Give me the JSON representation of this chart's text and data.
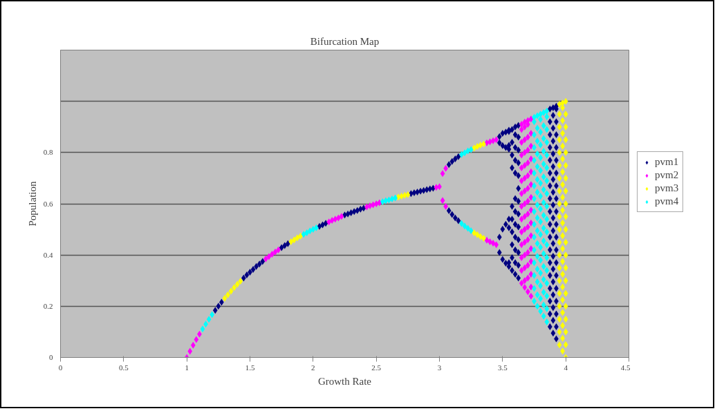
{
  "chart_data": {
    "type": "scatter",
    "title": "Bifurcation Map",
    "xlabel": "Growth Rate",
    "ylabel": "Population",
    "xlim": [
      0,
      4.5
    ],
    "xticks": [
      0,
      0.5,
      1,
      1.5,
      2,
      2.5,
      3,
      3.5,
      4,
      4.5
    ],
    "ylim": [
      0,
      1.2
    ],
    "yticks": [
      0,
      0.2,
      0.4,
      0.6,
      0.8,
      {
        "value": 1,
        "label": null
      },
      {
        "value": 1.2,
        "label": null
      }
    ],
    "grid": "y",
    "legend": "right",
    "marker": "diamond",
    "series": [
      {
        "name": "pvm1",
        "color": "#000080",
        "x": [
          1.225,
          1.25,
          1.275,
          1.45,
          1.475,
          1.5,
          1.525,
          1.55,
          1.575,
          1.6,
          1.75,
          1.775,
          1.8,
          2.05,
          2.075,
          2.1,
          2.25,
          2.275,
          2.3,
          2.325,
          2.35,
          2.375,
          2.4,
          2.775,
          2.8,
          2.825,
          2.85,
          2.875,
          2.9,
          2.925,
          2.95,
          3.075,
          3.075,
          3.1,
          3.1,
          3.125,
          3.125,
          3.15,
          3.15,
          3.475,
          3.475,
          3.475,
          3.475,
          3.5,
          3.5,
          3.5,
          3.5,
          3.525,
          3.525,
          3.525,
          3.525,
          3.55,
          3.55,
          3.55,
          3.55,
          3.55,
          3.55,
          3.55,
          3.55,
          3.575,
          3.575,
          3.575,
          3.575,
          3.575,
          3.575,
          3.575,
          3.575,
          3.575,
          3.575,
          3.6,
          3.6,
          3.6,
          3.6,
          3.6,
          3.6,
          3.6,
          3.6,
          3.6,
          3.6,
          3.6,
          3.6,
          3.625,
          3.625,
          3.625,
          3.625,
          3.625,
          3.625,
          3.625,
          3.625,
          3.625,
          3.625,
          3.625,
          3.625,
          3.625,
          3.875,
          3.875,
          3.875,
          3.875,
          3.875,
          3.875,
          3.875,
          3.875,
          3.875,
          3.875,
          3.875,
          3.875,
          3.875,
          3.875,
          3.875,
          3.875,
          3.875,
          3.875,
          3.9,
          3.9,
          3.9,
          3.9,
          3.9,
          3.9,
          3.9,
          3.9,
          3.9,
          3.9,
          3.9,
          3.9,
          3.9,
          3.9,
          3.9,
          3.9,
          3.9,
          3.9,
          3.9,
          3.925,
          3.925,
          3.925,
          3.925,
          3.925,
          3.925,
          3.925,
          3.925,
          3.925,
          3.925,
          3.925,
          3.925,
          3.925,
          3.925,
          3.925,
          3.925,
          3.925,
          3.925,
          3.925,
          3.925
        ],
        "values": [
          0.184,
          0.2,
          0.216,
          0.31,
          0.322,
          0.333,
          0.344,
          0.355,
          0.365,
          0.375,
          0.429,
          0.437,
          0.444,
          0.512,
          0.518,
          0.524,
          0.556,
          0.56,
          0.565,
          0.57,
          0.574,
          0.579,
          0.583,
          0.64,
          0.643,
          0.646,
          0.649,
          0.652,
          0.655,
          0.658,
          0.661,
          0.753,
          0.573,
          0.765,
          0.558,
          0.775,
          0.545,
          0.784,
          0.534,
          0.862,
          0.838,
          0.47,
          0.41,
          0.875,
          0.827,
          0.501,
          0.383,
          0.88,
          0.82,
          0.52,
          0.368,
          0.887,
          0.882,
          0.828,
          0.813,
          0.54,
          0.506,
          0.37,
          0.355,
          0.34,
          0.39,
          0.44,
          0.49,
          0.54,
          0.59,
          0.74,
          0.79,
          0.84,
          0.89,
          0.325,
          0.37,
          0.42,
          0.47,
          0.52,
          0.57,
          0.62,
          0.72,
          0.77,
          0.82,
          0.87,
          0.9,
          0.31,
          0.36,
          0.41,
          0.46,
          0.51,
          0.56,
          0.61,
          0.66,
          0.71,
          0.76,
          0.81,
          0.86,
          0.906,
          0.12,
          0.17,
          0.22,
          0.27,
          0.32,
          0.37,
          0.42,
          0.47,
          0.52,
          0.57,
          0.62,
          0.67,
          0.72,
          0.77,
          0.82,
          0.87,
          0.92,
          0.97,
          0.095,
          0.145,
          0.195,
          0.245,
          0.295,
          0.345,
          0.395,
          0.445,
          0.495,
          0.545,
          0.595,
          0.645,
          0.695,
          0.745,
          0.795,
          0.845,
          0.895,
          0.945,
          0.975,
          0.073,
          0.12,
          0.17,
          0.22,
          0.27,
          0.32,
          0.37,
          0.42,
          0.47,
          0.52,
          0.57,
          0.62,
          0.67,
          0.72,
          0.77,
          0.82,
          0.87,
          0.92,
          0.97,
          0.981
        ]
      },
      {
        "name": "pvm2",
        "color": "#ff00ff",
        "x": [
          1,
          1.025,
          1.05,
          1.075,
          1.1,
          1.625,
          1.65,
          1.675,
          1.7,
          1.725,
          2.125,
          2.15,
          2.175,
          2.2,
          2.225,
          2.425,
          2.45,
          2.475,
          2.5,
          2.525,
          2.975,
          3,
          3.025,
          3.025,
          3.05,
          3.05,
          3.375,
          3.375,
          3.4,
          3.4,
          3.425,
          3.425,
          3.45,
          3.45,
          3.65,
          3.65,
          3.65,
          3.65,
          3.65,
          3.65,
          3.65,
          3.65,
          3.65,
          3.65,
          3.65,
          3.65,
          3.65,
          3.65,
          3.675,
          3.675,
          3.675,
          3.675,
          3.675,
          3.675,
          3.675,
          3.675,
          3.675,
          3.675,
          3.675,
          3.675,
          3.675,
          3.675,
          3.675,
          3.7,
          3.7,
          3.7,
          3.7,
          3.7,
          3.7,
          3.7,
          3.7,
          3.7,
          3.7,
          3.7,
          3.7,
          3.7,
          3.7,
          3.7,
          3.725,
          3.725,
          3.725,
          3.725,
          3.725,
          3.725,
          3.725,
          3.725,
          3.725,
          3.725,
          3.725,
          3.725,
          3.725,
          3.725,
          3.725
        ],
        "values": [
          0,
          0.024,
          0.048,
          0.07,
          0.091,
          0.385,
          0.394,
          0.403,
          0.412,
          0.42,
          0.529,
          0.535,
          0.54,
          0.545,
          0.551,
          0.588,
          0.592,
          0.596,
          0.6,
          0.604,
          0.664,
          0.667,
          0.718,
          0.613,
          0.738,
          0.59,
          0.838,
          0.458,
          0.842,
          0.452,
          0.846,
          0.446,
          0.85,
          0.44,
          0.29,
          0.34,
          0.39,
          0.44,
          0.49,
          0.54,
          0.59,
          0.64,
          0.69,
          0.74,
          0.79,
          0.84,
          0.89,
          0.91,
          0.274,
          0.3,
          0.35,
          0.4,
          0.45,
          0.5,
          0.55,
          0.6,
          0.65,
          0.7,
          0.75,
          0.8,
          0.85,
          0.9,
          0.919,
          0.257,
          0.31,
          0.36,
          0.41,
          0.46,
          0.51,
          0.56,
          0.61,
          0.66,
          0.71,
          0.76,
          0.81,
          0.86,
          0.91,
          0.925,
          0.239,
          0.275,
          0.325,
          0.375,
          0.425,
          0.475,
          0.525,
          0.575,
          0.625,
          0.675,
          0.725,
          0.775,
          0.825,
          0.875,
          0.931
        ]
      },
      {
        "name": "pvm3",
        "color": "#ffff00",
        "x": [
          1.3,
          1.325,
          1.35,
          1.375,
          1.4,
          1.425,
          1.825,
          1.85,
          1.875,
          1.9,
          2.675,
          2.7,
          2.725,
          2.75,
          3.275,
          3.275,
          3.3,
          3.3,
          3.325,
          3.325,
          3.35,
          3.35,
          3.95,
          3.95,
          3.95,
          3.95,
          3.95,
          3.95,
          3.95,
          3.95,
          3.95,
          3.95,
          3.95,
          3.95,
          3.95,
          3.95,
          3.95,
          3.95,
          3.95,
          3.95,
          3.95,
          3.95,
          3.975,
          3.975,
          3.975,
          3.975,
          3.975,
          3.975,
          3.975,
          3.975,
          3.975,
          3.975,
          3.975,
          3.975,
          3.975,
          3.975,
          3.975,
          3.975,
          3.975,
          3.975,
          3.975,
          3.975,
          3.975,
          4,
          4,
          4,
          4,
          4,
          4,
          4,
          4,
          4,
          4,
          4,
          4,
          4,
          4,
          4,
          4,
          4,
          4,
          4,
          4,
          4
        ],
        "values": [
          0.231,
          0.245,
          0.259,
          0.273,
          0.286,
          0.298,
          0.452,
          0.459,
          0.467,
          0.474,
          0.626,
          0.63,
          0.633,
          0.636,
          0.818,
          0.487,
          0.824,
          0.479,
          0.829,
          0.472,
          0.833,
          0.465,
          0.049,
          0.1,
          0.15,
          0.2,
          0.25,
          0.3,
          0.35,
          0.4,
          0.45,
          0.5,
          0.55,
          0.6,
          0.65,
          0.7,
          0.75,
          0.8,
          0.85,
          0.9,
          0.95,
          0.988,
          0.025,
          0.075,
          0.125,
          0.175,
          0.225,
          0.275,
          0.325,
          0.375,
          0.425,
          0.475,
          0.525,
          0.575,
          0.625,
          0.675,
          0.725,
          0.775,
          0.825,
          0.875,
          0.925,
          0.975,
          0.994,
          0,
          0.05,
          0.1,
          0.15,
          0.2,
          0.25,
          0.3,
          0.35,
          0.4,
          0.45,
          0.5,
          0.55,
          0.6,
          0.65,
          0.7,
          0.75,
          0.8,
          0.85,
          0.9,
          0.95,
          1
        ]
      },
      {
        "name": "pvm4",
        "color": "#00ffff",
        "x": [
          1.125,
          1.15,
          1.175,
          1.2,
          1.925,
          1.95,
          1.975,
          2,
          2.025,
          2.55,
          2.575,
          2.6,
          2.625,
          2.65,
          3.175,
          3.175,
          3.2,
          3.2,
          3.225,
          3.225,
          3.25,
          3.25,
          3.75,
          3.75,
          3.75,
          3.75,
          3.75,
          3.75,
          3.75,
          3.75,
          3.75,
          3.75,
          3.75,
          3.75,
          3.75,
          3.75,
          3.75,
          3.75,
          3.775,
          3.775,
          3.775,
          3.775,
          3.775,
          3.775,
          3.775,
          3.775,
          3.775,
          3.775,
          3.775,
          3.775,
          3.775,
          3.775,
          3.775,
          3.775,
          3.8,
          3.8,
          3.8,
          3.8,
          3.8,
          3.8,
          3.8,
          3.8,
          3.8,
          3.8,
          3.8,
          3.8,
          3.8,
          3.8,
          3.8,
          3.8,
          3.8,
          3.825,
          3.825,
          3.825,
          3.825,
          3.825,
          3.825,
          3.825,
          3.825,
          3.825,
          3.825,
          3.825,
          3.825,
          3.825,
          3.825,
          3.825,
          3.825,
          3.825,
          3.85,
          3.85,
          3.85,
          3.85,
          3.85,
          3.85,
          3.85,
          3.85,
          3.85,
          3.85,
          3.85,
          3.85,
          3.85,
          3.85,
          3.85,
          3.85,
          3.85,
          3.85
        ],
        "values": [
          0.111,
          0.13,
          0.149,
          0.167,
          0.481,
          0.487,
          0.494,
          0.5,
          0.506,
          0.608,
          0.612,
          0.615,
          0.619,
          0.623,
          0.792,
          0.523,
          0.799,
          0.513,
          0.806,
          0.504,
          0.812,
          0.495,
          0.22,
          0.27,
          0.32,
          0.37,
          0.42,
          0.47,
          0.52,
          0.57,
          0.62,
          0.67,
          0.72,
          0.77,
          0.82,
          0.87,
          0.92,
          0.938,
          0.2,
          0.245,
          0.295,
          0.345,
          0.395,
          0.445,
          0.495,
          0.545,
          0.595,
          0.645,
          0.695,
          0.745,
          0.795,
          0.845,
          0.895,
          0.944,
          0.181,
          0.23,
          0.28,
          0.33,
          0.38,
          0.43,
          0.48,
          0.53,
          0.58,
          0.63,
          0.68,
          0.73,
          0.78,
          0.83,
          0.88,
          0.93,
          0.95,
          0.161,
          0.205,
          0.255,
          0.305,
          0.355,
          0.405,
          0.455,
          0.505,
          0.555,
          0.605,
          0.655,
          0.705,
          0.755,
          0.805,
          0.855,
          0.905,
          0.956,
          0.139,
          0.19,
          0.24,
          0.29,
          0.34,
          0.39,
          0.44,
          0.49,
          0.54,
          0.59,
          0.64,
          0.69,
          0.74,
          0.79,
          0.84,
          0.89,
          0.94,
          0.962
        ]
      }
    ]
  }
}
